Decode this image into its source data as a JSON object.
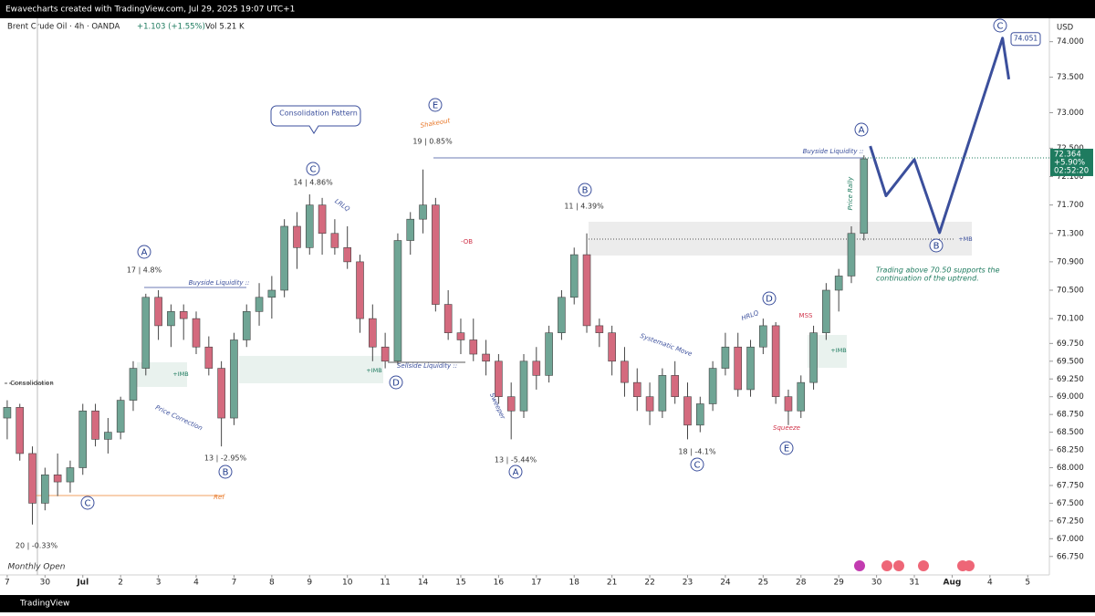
{
  "header": {
    "watermark": "Ewavecharts created with TradingView.com, Jul 29, 2025 19:07 UTC+1",
    "symbol": "Brent Crude Oil · 4h · OANDA",
    "change": "+1.103 (+1.55%)",
    "volume": "Vol 5.21 K",
    "brand": "TradingView"
  },
  "chart_data": {
    "type": "candlestick",
    "currency": "USD",
    "x": [
      0,
      2,
      4,
      6,
      8,
      10,
      12,
      14,
      16,
      18,
      20,
      22,
      24,
      26,
      28,
      30,
      32,
      34,
      36,
      38,
      40,
      42,
      44,
      46,
      48,
      50,
      52,
      54,
      56,
      58,
      60,
      62,
      64,
      66,
      68,
      70,
      72,
      74,
      76,
      78,
      80,
      82,
      84,
      86,
      88,
      90,
      92,
      94,
      96,
      98,
      100,
      102,
      104,
      106,
      108,
      110,
      112,
      114,
      116,
      118,
      120,
      122,
      124,
      126,
      128,
      130,
      132,
      134,
      136
    ],
    "open": [
      68.7,
      68.85,
      68.2,
      67.5,
      67.9,
      67.8,
      68.0,
      68.8,
      68.4,
      68.5,
      68.95,
      69.4,
      70.4,
      70.0,
      70.2,
      70.1,
      69.7,
      69.4,
      68.7,
      69.8,
      70.2,
      70.4,
      70.5,
      71.4,
      71.1,
      71.7,
      71.3,
      71.1,
      70.9,
      70.1,
      69.7,
      69.5,
      71.2,
      71.5,
      71.7,
      70.3,
      69.9,
      69.8,
      69.6,
      69.5,
      69.0,
      68.8,
      69.5,
      69.3,
      69.9,
      70.4,
      71.0,
      70.0,
      69.9,
      69.5,
      69.2,
      69.0,
      68.8,
      69.3,
      69.0,
      68.6,
      68.9,
      69.4,
      69.7,
      69.1,
      69.7,
      70.0,
      69.0,
      68.8,
      69.2,
      69.9,
      70.5,
      70.7,
      71.3
    ],
    "high": [
      68.95,
      68.9,
      68.3,
      68.0,
      68.2,
      68.1,
      68.9,
      68.9,
      68.7,
      69.0,
      69.5,
      70.45,
      70.5,
      70.3,
      70.3,
      70.2,
      69.85,
      69.5,
      69.9,
      70.3,
      70.6,
      70.7,
      71.5,
      71.6,
      71.85,
      71.8,
      71.5,
      71.4,
      71.0,
      70.3,
      69.9,
      71.3,
      71.6,
      72.2,
      71.8,
      70.5,
      70.1,
      70.1,
      69.8,
      69.6,
      69.2,
      69.6,
      69.7,
      70.0,
      70.5,
      71.1,
      71.3,
      70.1,
      70.0,
      69.7,
      69.4,
      69.2,
      69.4,
      69.5,
      69.2,
      69.0,
      69.5,
      69.9,
      69.9,
      69.8,
      70.1,
      70.05,
      69.1,
      69.3,
      70.0,
      70.6,
      70.8,
      71.4,
      72.4
    ],
    "low": [
      68.4,
      68.1,
      67.2,
      67.4,
      67.6,
      67.65,
      67.9,
      68.3,
      68.2,
      68.4,
      68.8,
      69.3,
      69.8,
      69.7,
      69.8,
      69.6,
      69.3,
      68.3,
      68.6,
      69.7,
      70.0,
      70.1,
      70.4,
      70.8,
      71.0,
      71.0,
      71.0,
      70.8,
      69.9,
      69.5,
      69.4,
      69.45,
      71.0,
      71.3,
      70.2,
      69.8,
      69.6,
      69.5,
      69.3,
      68.9,
      68.4,
      68.7,
      69.1,
      69.2,
      69.8,
      70.3,
      69.9,
      69.7,
      69.3,
      69.0,
      68.8,
      68.6,
      68.7,
      68.9,
      68.4,
      68.5,
      68.8,
      69.3,
      69.0,
      69.0,
      69.6,
      68.9,
      68.6,
      68.7,
      69.1,
      69.8,
      70.2,
      70.6,
      71.2
    ],
    "close": [
      68.85,
      68.2,
      67.5,
      67.9,
      67.8,
      68.0,
      68.8,
      68.4,
      68.5,
      68.95,
      69.4,
      70.4,
      70.0,
      70.2,
      70.1,
      69.7,
      69.4,
      68.7,
      69.8,
      70.2,
      70.4,
      70.5,
      71.4,
      71.1,
      71.7,
      71.3,
      71.1,
      70.9,
      70.1,
      69.7,
      69.5,
      71.2,
      71.5,
      71.7,
      70.3,
      69.9,
      69.8,
      69.6,
      69.5,
      69.0,
      68.8,
      69.5,
      69.3,
      69.9,
      70.4,
      71.0,
      70.0,
      69.9,
      69.5,
      69.2,
      69.0,
      68.8,
      69.3,
      69.0,
      68.6,
      68.9,
      69.4,
      69.7,
      69.1,
      69.7,
      70.0,
      69.0,
      68.8,
      69.2,
      69.9,
      70.5,
      70.7,
      71.3,
      72.35
    ],
    "up_color": "#6fa595",
    "down_color": "#d46a7e",
    "projection": {
      "x": [
        137,
        139.5,
        144,
        148,
        158,
        159
      ],
      "y": [
        72.53,
        71.83,
        72.34,
        71.31,
        74.05,
        73.47
      ],
      "color": "#3b4f9c",
      "peak_label": 74.051
    },
    "last_price": {
      "value": 72.364,
      "change": "+5.90%",
      "countdown": "02:52:20",
      "color": "#1e7b5f"
    },
    "xlim": [
      -1,
      165
    ],
    "xticks": [
      {
        "value": 0,
        "label": "7"
      },
      {
        "value": 6,
        "label": "30"
      },
      {
        "value": 12,
        "label": "Jul"
      },
      {
        "value": 18,
        "label": "2"
      },
      {
        "value": 24,
        "label": "3"
      },
      {
        "value": 30,
        "label": "4"
      },
      {
        "value": 36,
        "label": "7"
      },
      {
        "value": 42,
        "label": "8"
      },
      {
        "value": 48,
        "label": "9"
      },
      {
        "value": 54,
        "label": "10"
      },
      {
        "value": 60,
        "label": "11"
      },
      {
        "value": 66,
        "label": "14"
      },
      {
        "value": 72,
        "label": "15"
      },
      {
        "value": 78,
        "label": "16"
      },
      {
        "value": 84,
        "label": "17"
      },
      {
        "value": 90,
        "label": "18"
      },
      {
        "value": 96,
        "label": "21"
      },
      {
        "value": 102,
        "label": "22"
      },
      {
        "value": 108,
        "label": "23"
      },
      {
        "value": 114,
        "label": "24"
      },
      {
        "value": 120,
        "label": "25"
      },
      {
        "value": 126,
        "label": "28"
      },
      {
        "value": 132,
        "label": "29"
      },
      {
        "value": 138,
        "label": "30"
      },
      {
        "value": 144,
        "label": "31"
      },
      {
        "value": 150,
        "label": "Aug"
      },
      {
        "value": 156,
        "label": "4"
      },
      {
        "value": 162,
        "label": "5"
      }
    ],
    "ylim": [
      66.49,
      74.33
    ],
    "yticks": [
      {
        "value": 66.75,
        "label": "66.750"
      },
      {
        "value": 67,
        "label": "67.000"
      },
      {
        "value": 67.25,
        "label": "67.250"
      },
      {
        "value": 67.5,
        "label": "67.500"
      },
      {
        "value": 67.75,
        "label": "67.750"
      },
      {
        "value": 68,
        "label": "68.000"
      },
      {
        "value": 68.25,
        "label": "68.250"
      },
      {
        "value": 68.5,
        "label": "68.500"
      },
      {
        "value": 68.75,
        "label": "68.750"
      },
      {
        "value": 69,
        "label": "69.000"
      },
      {
        "value": 69.25,
        "label": "69.250"
      },
      {
        "value": 69.5,
        "label": "69.500"
      },
      {
        "value": 69.75,
        "label": "69.750"
      },
      {
        "value": 70.1,
        "label": "70.100"
      },
      {
        "value": 70.5,
        "label": "70.500"
      },
      {
        "value": 70.9,
        "label": "70.900"
      },
      {
        "value": 71.3,
        "label": "71.300"
      },
      {
        "value": 71.7,
        "label": "71.700"
      },
      {
        "value": 72.1,
        "label": "72.100"
      },
      {
        "value": 72.5,
        "label": "72.500"
      },
      {
        "value": 73,
        "label": "73.000"
      },
      {
        "value": 73.5,
        "label": "73.500"
      },
      {
        "value": 74,
        "label": "74.000"
      }
    ],
    "wave_labels": [
      "A",
      "B",
      "C",
      "C",
      "D",
      "E",
      "A",
      "B",
      "C",
      "D",
      "E",
      "A",
      "B",
      "C"
    ],
    "annotations": [
      "17 | 4.8%",
      "13 | -2.95%",
      "20 | -0.33%",
      "14 | 4.86%",
      "19 | 0.85%",
      "11 | 4.39%",
      "13 | -5.44%",
      "18 | -4.1%",
      "Consolidation Pattern",
      "Shakeout",
      "Buyside Liquidity ::",
      "Buyside Liquidity ::",
      "Sellside Liquidity ::",
      "Price Correction",
      "LRLQ",
      "-OB",
      "Sweeper",
      "Systematic Move",
      "HRLQ",
      "MSS",
      "Squeeze",
      "Price Rally",
      "+IMB",
      "+IMB",
      "+IMB",
      "+MB",
      "Consolidation",
      "Ref",
      "Monthly Open",
      "Trading above 70.50 supports the",
      "continuation of the uptrend."
    ]
  }
}
